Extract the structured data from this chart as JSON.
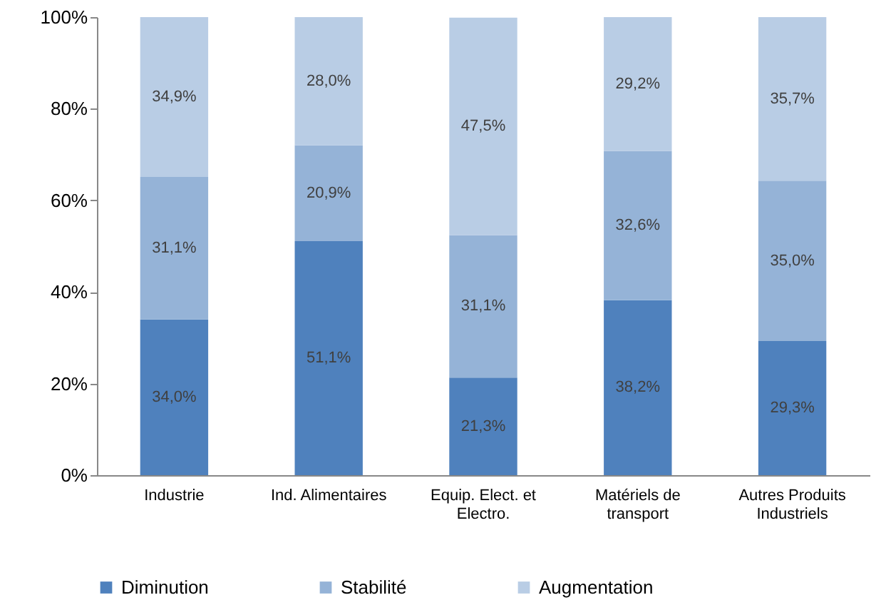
{
  "chart_data": {
    "type": "bar",
    "stacked": true,
    "categories": [
      "Industrie",
      "Ind. Alimentaires",
      "Equip. Elect. et Electro.",
      "Matériels de transport",
      "Autres Produits Industriels"
    ],
    "series": [
      {
        "name": "Diminution",
        "color": "#4f81bd",
        "values": [
          34.0,
          51.1,
          21.3,
          38.2,
          29.3
        ],
        "value_labels": [
          "34,0%",
          "51,1%",
          "21,3%",
          "38,2%",
          "29,3%"
        ]
      },
      {
        "name": "Stabilité",
        "color": "#95b3d7",
        "values": [
          31.1,
          20.9,
          31.1,
          32.6,
          35.0
        ],
        "value_labels": [
          "31,1%",
          "20,9%",
          "31,1%",
          "32,6%",
          "35,0%"
        ]
      },
      {
        "name": "Augmentation",
        "color": "#b9cde5",
        "values": [
          34.9,
          28.0,
          47.5,
          29.2,
          35.7
        ],
        "value_labels": [
          "34,9%",
          "28,0%",
          "47,5%",
          "29,2%",
          "35,7%"
        ]
      }
    ],
    "ylim": [
      0,
      100
    ],
    "yticks": [
      {
        "value": 0,
        "label": "0%"
      },
      {
        "value": 20,
        "label": "20%"
      },
      {
        "value": 40,
        "label": "40%"
      },
      {
        "value": 60,
        "label": "60%"
      },
      {
        "value": 80,
        "label": "80%"
      },
      {
        "value": 100,
        "label": "100%"
      }
    ],
    "legend": "bottom"
  }
}
